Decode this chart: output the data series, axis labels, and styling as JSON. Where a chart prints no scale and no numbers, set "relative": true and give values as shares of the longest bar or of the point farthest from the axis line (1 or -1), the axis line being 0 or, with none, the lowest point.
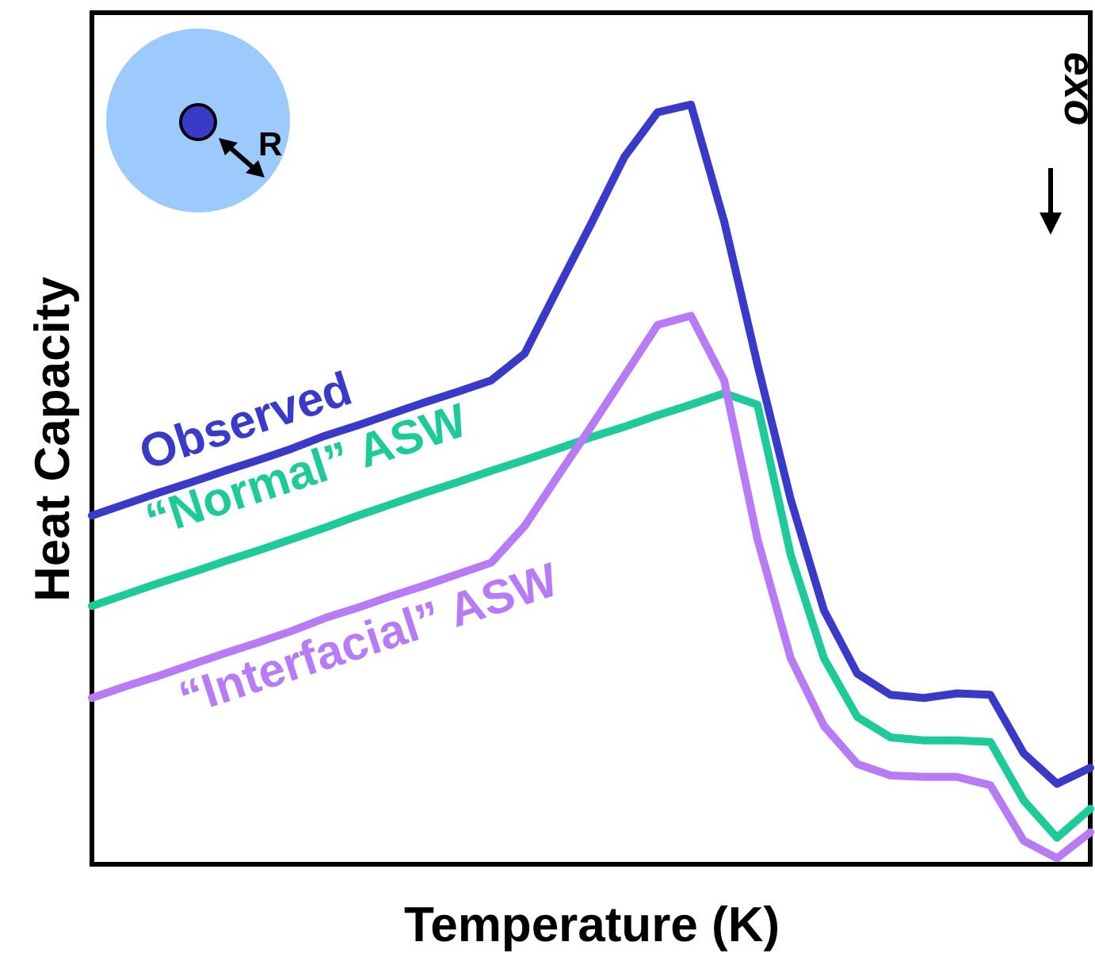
{
  "chart_data": {
    "type": "line",
    "relative": true,
    "xlabel": "Temperature (K)",
    "ylabel": "Heat Capacity",
    "categories": [
      null,
      null,
      null,
      null,
      null,
      null,
      null,
      null,
      null,
      null,
      null,
      null,
      null,
      null,
      null,
      null,
      null,
      null,
      null,
      null,
      null,
      null,
      null,
      null,
      null,
      null,
      null,
      null,
      null,
      null,
      null
    ],
    "series": [
      {
        "name": "Observed",
        "color": "#3a3ac8",
        "values": [
          0.459,
          0.474,
          0.489,
          0.503,
          0.518,
          0.532,
          0.547,
          0.564,
          0.578,
          0.593,
          0.608,
          0.622,
          0.637,
          0.672,
          0.758,
          0.843,
          0.931,
          0.99,
          1.0,
          0.846,
          0.658,
          0.48,
          0.334,
          0.251,
          0.223,
          0.219,
          0.225,
          0.223,
          0.146,
          0.106,
          0.127
        ]
      },
      {
        "name": "“Normal” ASW",
        "color": "#1ec99a",
        "values": [
          0.34,
          0.355,
          0.37,
          0.384,
          0.399,
          0.413,
          0.428,
          0.443,
          0.459,
          0.474,
          0.489,
          0.503,
          0.518,
          0.532,
          0.547,
          0.562,
          0.576,
          0.591,
          0.605,
          0.62,
          0.605,
          0.407,
          0.271,
          0.194,
          0.167,
          0.163,
          0.163,
          0.161,
          0.084,
          0.035,
          0.073
        ]
      },
      {
        "name": "“Interfacial” ASW",
        "color": "#b77cf5",
        "values": [
          0.219,
          0.234,
          0.248,
          0.263,
          0.278,
          0.292,
          0.307,
          0.324,
          0.338,
          0.353,
          0.367,
          0.382,
          0.397,
          0.445,
          0.511,
          0.576,
          0.643,
          0.71,
          0.722,
          0.637,
          0.428,
          0.271,
          0.182,
          0.132,
          0.117,
          0.115,
          0.115,
          0.104,
          0.031,
          0.008,
          0.042
        ]
      }
    ],
    "annotations": [
      "R",
      "exo"
    ],
    "grid": false,
    "marker": "none",
    "line_style": "solid"
  }
}
